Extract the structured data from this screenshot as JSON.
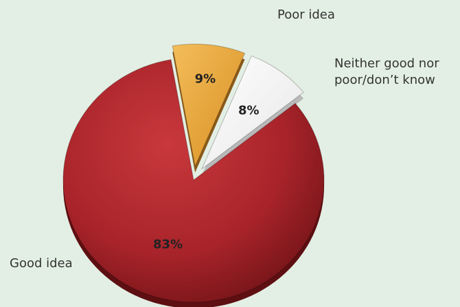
{
  "chart_data": {
    "type": "pie",
    "title": "",
    "slices": [
      {
        "label": "Poor idea",
        "value": 9,
        "value_label": "9%",
        "color": "#e6a23a",
        "exploded": true
      },
      {
        "label": "Neither good nor poor/don’t know",
        "label_lines": [
          "Neither good nor",
          "poor/don’t know"
        ],
        "value": 8,
        "value_label": "8%",
        "color": "#f7f7f7",
        "exploded": true
      },
      {
        "label": "Good idea",
        "value": 83,
        "value_label": "83%",
        "color": "#a8242a",
        "exploded": false
      }
    ]
  }
}
